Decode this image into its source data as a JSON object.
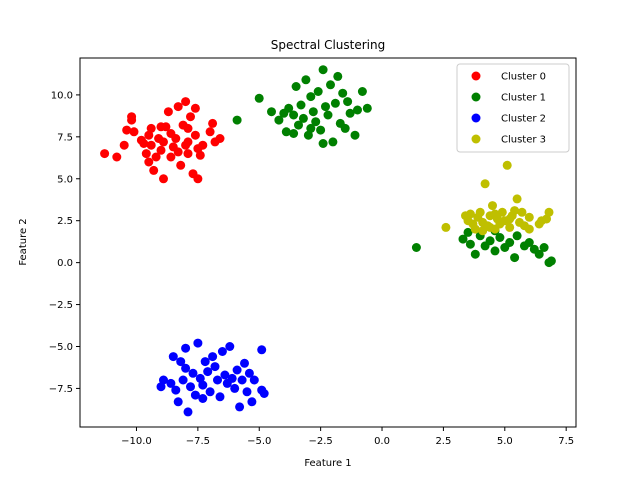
{
  "chart_data": {
    "type": "scatter",
    "title": "Spectral Clustering",
    "xlabel": "Feature 1",
    "ylabel": "Feature 2",
    "xlim": [
      -12.3,
      7.9
    ],
    "ylim": [
      -9.8,
      12.2
    ],
    "xticks": [
      -10.0,
      -7.5,
      -5.0,
      -2.5,
      0.0,
      2.5,
      5.0,
      7.5
    ],
    "xtick_labels": [
      "−10.0",
      "−7.5",
      "−5.0",
      "−2.5",
      "0.0",
      "2.5",
      "5.0",
      "7.5"
    ],
    "yticks": [
      -7.5,
      -5.0,
      -2.5,
      0.0,
      2.5,
      5.0,
      7.5,
      10.0
    ],
    "ytick_labels": [
      "−7.5",
      "−5.0",
      "−2.5",
      "0.0",
      "2.5",
      "5.0",
      "7.5",
      "10.0"
    ],
    "grid": false,
    "legend_position": "top-right",
    "series": [
      {
        "name": "Cluster 0",
        "color": "#ff0000",
        "points": [
          [
            -11.3,
            6.5
          ],
          [
            -10.8,
            6.3
          ],
          [
            -10.5,
            7.0
          ],
          [
            -10.4,
            7.9
          ],
          [
            -10.2,
            8.5
          ],
          [
            -10.2,
            8.7
          ],
          [
            -10.1,
            7.8
          ],
          [
            -9.8,
            7.3
          ],
          [
            -9.7,
            7.1
          ],
          [
            -9.6,
            6.5
          ],
          [
            -9.5,
            7.6
          ],
          [
            -9.5,
            6.0
          ],
          [
            -9.4,
            8.0
          ],
          [
            -9.4,
            7.0
          ],
          [
            -9.3,
            5.5
          ],
          [
            -9.2,
            6.3
          ],
          [
            -9.1,
            7.4
          ],
          [
            -9.0,
            6.7
          ],
          [
            -8.9,
            5.0
          ],
          [
            -8.9,
            7.2
          ],
          [
            -8.8,
            8.1
          ],
          [
            -8.7,
            9.0
          ],
          [
            -8.6,
            6.3
          ],
          [
            -8.6,
            7.7
          ],
          [
            -8.5,
            6.9
          ],
          [
            -8.4,
            7.4
          ],
          [
            -8.3,
            9.3
          ],
          [
            -8.3,
            6.6
          ],
          [
            -8.2,
            5.8
          ],
          [
            -8.1,
            8.2
          ],
          [
            -8.0,
            7.0
          ],
          [
            -8.0,
            9.6
          ],
          [
            -7.9,
            6.5
          ],
          [
            -7.9,
            7.2
          ],
          [
            -7.8,
            8.7
          ],
          [
            -7.7,
            5.3
          ],
          [
            -7.6,
            9.2
          ],
          [
            -7.6,
            7.6
          ],
          [
            -7.5,
            6.8
          ],
          [
            -7.5,
            5.0
          ],
          [
            -7.4,
            6.4
          ],
          [
            -7.3,
            7.0
          ],
          [
            -7.0,
            7.8
          ],
          [
            -6.9,
            8.3
          ],
          [
            -6.8,
            7.2
          ],
          [
            -6.6,
            7.4
          ],
          [
            -7.9,
            8.0
          ],
          [
            -9.0,
            8.1
          ]
        ]
      },
      {
        "name": "Cluster 1",
        "color": "#008000",
        "points": [
          [
            -5.9,
            8.5
          ],
          [
            -5.0,
            9.8
          ],
          [
            -4.5,
            9.0
          ],
          [
            -4.2,
            8.5
          ],
          [
            -4.0,
            8.9
          ],
          [
            -3.9,
            7.8
          ],
          [
            -3.8,
            9.2
          ],
          [
            -3.6,
            7.7
          ],
          [
            -3.5,
            10.5
          ],
          [
            -3.4,
            8.2
          ],
          [
            -3.3,
            9.4
          ],
          [
            -3.2,
            8.6
          ],
          [
            -3.1,
            10.9
          ],
          [
            -3.0,
            7.6
          ],
          [
            -2.9,
            9.9
          ],
          [
            -2.8,
            9.0
          ],
          [
            -2.7,
            8.4
          ],
          [
            -2.6,
            10.2
          ],
          [
            -2.5,
            7.9
          ],
          [
            -2.4,
            11.5
          ],
          [
            -2.3,
            9.3
          ],
          [
            -2.2,
            8.8
          ],
          [
            -2.1,
            10.6
          ],
          [
            -2.0,
            7.2
          ],
          [
            -1.9,
            9.5
          ],
          [
            -1.8,
            11.1
          ],
          [
            -1.7,
            8.3
          ],
          [
            -1.6,
            10.1
          ],
          [
            -1.5,
            8.0
          ],
          [
            -1.4,
            9.6
          ],
          [
            -1.3,
            8.9
          ],
          [
            -1.1,
            7.6
          ],
          [
            -1.0,
            9.1
          ],
          [
            -0.8,
            10.2
          ],
          [
            -0.6,
            9.2
          ],
          [
            -2.9,
            8.0
          ],
          [
            -3.6,
            8.8
          ],
          [
            -2.4,
            7.1
          ],
          [
            1.4,
            0.9
          ],
          [
            3.3,
            1.4
          ],
          [
            3.6,
            1.1
          ],
          [
            3.8,
            0.5
          ],
          [
            4.0,
            1.6
          ],
          [
            4.2,
            1.0
          ],
          [
            4.4,
            1.3
          ],
          [
            4.6,
            0.7
          ],
          [
            4.8,
            1.5
          ],
          [
            5.0,
            0.9
          ],
          [
            5.2,
            1.2
          ],
          [
            5.4,
            0.3
          ],
          [
            5.5,
            1.6
          ],
          [
            5.8,
            1.0
          ],
          [
            6.0,
            1.2
          ],
          [
            6.2,
            0.8
          ],
          [
            6.4,
            0.5
          ],
          [
            6.6,
            0.9
          ],
          [
            6.8,
            0.0
          ],
          [
            6.9,
            0.1
          ],
          [
            3.5,
            1.8
          ],
          [
            4.6,
            1.9
          ]
        ]
      },
      {
        "name": "Cluster 2",
        "color": "#0000ff",
        "points": [
          [
            -9.0,
            -7.4
          ],
          [
            -8.9,
            -7.0
          ],
          [
            -8.6,
            -7.2
          ],
          [
            -8.5,
            -5.6
          ],
          [
            -8.4,
            -7.6
          ],
          [
            -8.3,
            -8.3
          ],
          [
            -8.2,
            -5.9
          ],
          [
            -8.1,
            -7.0
          ],
          [
            -8.0,
            -6.3
          ],
          [
            -7.9,
            -8.9
          ],
          [
            -7.8,
            -7.4
          ],
          [
            -7.7,
            -6.6
          ],
          [
            -7.6,
            -7.9
          ],
          [
            -7.5,
            -4.8
          ],
          [
            -7.4,
            -6.9
          ],
          [
            -7.3,
            -7.3
          ],
          [
            -7.2,
            -5.9
          ],
          [
            -7.1,
            -6.5
          ],
          [
            -7.0,
            -7.7
          ],
          [
            -6.9,
            -5.6
          ],
          [
            -6.8,
            -6.2
          ],
          [
            -6.7,
            -7.0
          ],
          [
            -6.6,
            -8.0
          ],
          [
            -6.5,
            -5.3
          ],
          [
            -6.4,
            -6.7
          ],
          [
            -6.3,
            -7.2
          ],
          [
            -6.2,
            -5.0
          ],
          [
            -6.1,
            -6.9
          ],
          [
            -6.0,
            -7.5
          ],
          [
            -5.9,
            -6.4
          ],
          [
            -5.8,
            -8.6
          ],
          [
            -5.7,
            -7.0
          ],
          [
            -5.6,
            -6.0
          ],
          [
            -5.5,
            -7.7
          ],
          [
            -5.4,
            -6.6
          ],
          [
            -5.3,
            -8.3
          ],
          [
            -5.2,
            -7.0
          ],
          [
            -4.9,
            -7.6
          ],
          [
            -4.8,
            -7.8
          ],
          [
            -4.9,
            -5.2
          ],
          [
            -8.0,
            -5.1
          ],
          [
            -7.3,
            -8.1
          ]
        ]
      },
      {
        "name": "Cluster 3",
        "color": "#bfbf00",
        "points": [
          [
            2.6,
            2.1
          ],
          [
            3.4,
            2.8
          ],
          [
            3.5,
            2.5
          ],
          [
            3.7,
            2.3
          ],
          [
            3.8,
            2.0
          ],
          [
            3.9,
            2.7
          ],
          [
            4.0,
            3.0
          ],
          [
            4.1,
            2.4
          ],
          [
            4.2,
            4.7
          ],
          [
            4.3,
            2.2
          ],
          [
            4.4,
            2.8
          ],
          [
            4.5,
            3.4
          ],
          [
            4.6,
            2.0
          ],
          [
            4.7,
            2.6
          ],
          [
            4.8,
            2.3
          ],
          [
            4.9,
            3.0
          ],
          [
            5.0,
            2.5
          ],
          [
            5.1,
            5.8
          ],
          [
            5.2,
            2.1
          ],
          [
            5.3,
            2.8
          ],
          [
            5.4,
            3.1
          ],
          [
            5.5,
            3.8
          ],
          [
            5.6,
            2.4
          ],
          [
            5.7,
            3.0
          ],
          [
            5.8,
            2.2
          ],
          [
            6.0,
            2.7
          ],
          [
            6.4,
            2.3
          ],
          [
            6.5,
            2.5
          ],
          [
            6.7,
            2.6
          ],
          [
            6.8,
            3.0
          ],
          [
            3.6,
            2.9
          ],
          [
            4.1,
            1.9
          ],
          [
            4.6,
            2.9
          ],
          [
            5.2,
            2.6
          ],
          [
            4.4,
            2.1
          ],
          [
            6.0,
            2.0
          ]
        ]
      }
    ]
  }
}
